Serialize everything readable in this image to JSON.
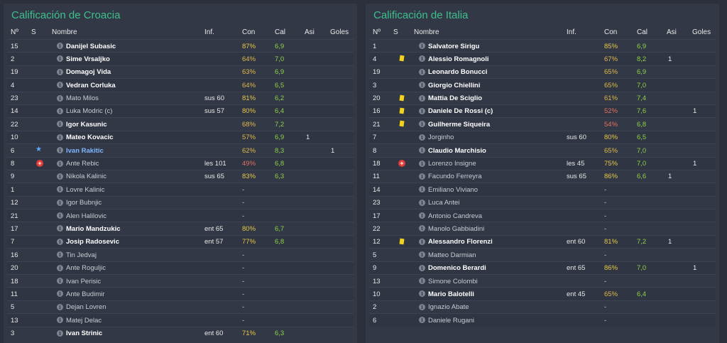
{
  "columns": {
    "no": "Nº",
    "s": "S",
    "nombre": "Nombre",
    "inf": "Inf.",
    "con": "Con",
    "cal": "Cal",
    "asi": "Asi",
    "goles": "Goles"
  },
  "left": {
    "title": "Calificación de Croacia",
    "rows": [
      {
        "no": "15",
        "name": "Danijel Subasic",
        "style": "bold",
        "inf": "",
        "con": "87%",
        "con_tone": "hi",
        "cal": "6,9",
        "asi": "",
        "goles": "",
        "icon": ""
      },
      {
        "no": "2",
        "name": "Sime Vrsaljko",
        "style": "bold",
        "inf": "",
        "con": "64%",
        "con_tone": "mid",
        "cal": "7,0",
        "asi": "",
        "goles": "",
        "icon": ""
      },
      {
        "no": "19",
        "name": "Domagoj Vida",
        "style": "bold",
        "inf": "",
        "con": "63%",
        "con_tone": "mid",
        "cal": "6,9",
        "asi": "",
        "goles": "",
        "icon": ""
      },
      {
        "no": "4",
        "name": "Vedran Corluka",
        "style": "bold",
        "inf": "",
        "con": "64%",
        "con_tone": "mid",
        "cal": "6,5",
        "asi": "",
        "goles": "",
        "icon": ""
      },
      {
        "no": "23",
        "name": "Mato Milos",
        "style": "dim",
        "inf": "sus 60",
        "con": "81%",
        "con_tone": "hi",
        "cal": "6,2",
        "asi": "",
        "goles": "",
        "icon": ""
      },
      {
        "no": "14",
        "name": "Luka Modric (c)",
        "style": "dim",
        "inf": "sus 57",
        "con": "80%",
        "con_tone": "hi",
        "cal": "6,4",
        "asi": "",
        "goles": "",
        "icon": ""
      },
      {
        "no": "22",
        "name": "Igor Kasunic",
        "style": "bold",
        "inf": "",
        "con": "68%",
        "con_tone": "mid",
        "cal": "7,2",
        "asi": "",
        "goles": "",
        "icon": ""
      },
      {
        "no": "10",
        "name": "Mateo Kovacic",
        "style": "bold",
        "inf": "",
        "con": "57%",
        "con_tone": "mid",
        "cal": "6,9",
        "asi": "1",
        "goles": "",
        "icon": ""
      },
      {
        "no": "6",
        "name": "Ivan Rakitic",
        "style": "star",
        "inf": "",
        "con": "62%",
        "con_tone": "mid",
        "cal": "8,3",
        "asi": "",
        "goles": "1",
        "icon": "star"
      },
      {
        "no": "8",
        "name": "Ante Rebic",
        "style": "dim",
        "inf": "les 101",
        "con": "49%",
        "con_tone": "lo",
        "cal": "6,8",
        "asi": "",
        "goles": "",
        "icon": "injury"
      },
      {
        "no": "9",
        "name": "Nikola Kalinic",
        "style": "dim",
        "inf": "sus 65",
        "con": "83%",
        "con_tone": "hi",
        "cal": "6,3",
        "asi": "",
        "goles": "",
        "icon": ""
      },
      {
        "no": "1",
        "name": "Lovre Kalinic",
        "style": "dim",
        "inf": "",
        "con": "-",
        "con_tone": "",
        "cal": "",
        "asi": "",
        "goles": "",
        "icon": ""
      },
      {
        "no": "12",
        "name": "Igor Bubnjic",
        "style": "dim",
        "inf": "",
        "con": "-",
        "con_tone": "",
        "cal": "",
        "asi": "",
        "goles": "",
        "icon": ""
      },
      {
        "no": "21",
        "name": "Alen Halilovic",
        "style": "dim",
        "inf": "",
        "con": "-",
        "con_tone": "",
        "cal": "",
        "asi": "",
        "goles": "",
        "icon": ""
      },
      {
        "no": "17",
        "name": "Mario Mandzukic",
        "style": "bold",
        "inf": "ent 65",
        "con": "80%",
        "con_tone": "hi",
        "cal": "6,7",
        "asi": "",
        "goles": "",
        "icon": ""
      },
      {
        "no": "7",
        "name": "Josip Radosevic",
        "style": "bold",
        "inf": "ent 57",
        "con": "77%",
        "con_tone": "hi",
        "cal": "6,8",
        "asi": "",
        "goles": "",
        "icon": ""
      },
      {
        "no": "16",
        "name": "Tin Jedvaj",
        "style": "dim",
        "inf": "",
        "con": "-",
        "con_tone": "",
        "cal": "",
        "asi": "",
        "goles": "",
        "icon": ""
      },
      {
        "no": "20",
        "name": "Ante Roguljic",
        "style": "dim",
        "inf": "",
        "con": "-",
        "con_tone": "",
        "cal": "",
        "asi": "",
        "goles": "",
        "icon": ""
      },
      {
        "no": "18",
        "name": "Ivan Perisic",
        "style": "dim",
        "inf": "",
        "con": "-",
        "con_tone": "",
        "cal": "",
        "asi": "",
        "goles": "",
        "icon": ""
      },
      {
        "no": "11",
        "name": "Ante Budimir",
        "style": "dim",
        "inf": "",
        "con": "-",
        "con_tone": "",
        "cal": "",
        "asi": "",
        "goles": "",
        "icon": ""
      },
      {
        "no": "5",
        "name": "Dejan Lovren",
        "style": "dim",
        "inf": "",
        "con": "-",
        "con_tone": "",
        "cal": "",
        "asi": "",
        "goles": "",
        "icon": ""
      },
      {
        "no": "13",
        "name": "Matej Delac",
        "style": "dim",
        "inf": "",
        "con": "-",
        "con_tone": "",
        "cal": "",
        "asi": "",
        "goles": "",
        "icon": ""
      },
      {
        "no": "3",
        "name": "Ivan Strinic",
        "style": "bold",
        "inf": "ent 60",
        "con": "71%",
        "con_tone": "hi",
        "cal": "6,3",
        "asi": "",
        "goles": "",
        "icon": ""
      }
    ]
  },
  "right": {
    "title": "Calificación de Italia",
    "rows": [
      {
        "no": "1",
        "name": "Salvatore Sirigu",
        "style": "bold",
        "inf": "",
        "con": "85%",
        "con_tone": "hi",
        "cal": "6,9",
        "asi": "",
        "goles": "",
        "icon": ""
      },
      {
        "no": "4",
        "name": "Alessio Romagnoli",
        "style": "bold",
        "inf": "",
        "con": "67%",
        "con_tone": "mid",
        "cal": "8,2",
        "asi": "1",
        "goles": "",
        "icon": "card"
      },
      {
        "no": "19",
        "name": "Leonardo Bonucci",
        "style": "bold",
        "inf": "",
        "con": "65%",
        "con_tone": "mid",
        "cal": "6,9",
        "asi": "",
        "goles": "",
        "icon": ""
      },
      {
        "no": "3",
        "name": "Giorgio Chiellini",
        "style": "bold",
        "inf": "",
        "con": "65%",
        "con_tone": "mid",
        "cal": "7,0",
        "asi": "",
        "goles": "",
        "icon": ""
      },
      {
        "no": "20",
        "name": "Mattia De Sciglio",
        "style": "bold",
        "inf": "",
        "con": "61%",
        "con_tone": "mid",
        "cal": "7,4",
        "asi": "",
        "goles": "",
        "icon": "card"
      },
      {
        "no": "16",
        "name": "Daniele De Rossi (c)",
        "style": "bold",
        "inf": "",
        "con": "52%",
        "con_tone": "lo",
        "cal": "7,6",
        "asi": "",
        "goles": "1",
        "icon": "card"
      },
      {
        "no": "21",
        "name": "Guilherme Siqueira",
        "style": "bold",
        "inf": "",
        "con": "54%",
        "con_tone": "lo",
        "cal": "6,8",
        "asi": "",
        "goles": "",
        "icon": "card"
      },
      {
        "no": "7",
        "name": "Jorginho",
        "style": "dim",
        "inf": "sus 60",
        "con": "80%",
        "con_tone": "hi",
        "cal": "6,5",
        "asi": "",
        "goles": "",
        "icon": ""
      },
      {
        "no": "8",
        "name": "Claudio Marchisio",
        "style": "bold",
        "inf": "",
        "con": "65%",
        "con_tone": "mid",
        "cal": "7,0",
        "asi": "",
        "goles": "",
        "icon": ""
      },
      {
        "no": "18",
        "name": "Lorenzo Insigne",
        "style": "dim",
        "inf": "les 45",
        "con": "75%",
        "con_tone": "hi",
        "cal": "7,0",
        "asi": "",
        "goles": "1",
        "icon": "injury"
      },
      {
        "no": "11",
        "name": "Facundo Ferreyra",
        "style": "dim",
        "inf": "sus 65",
        "con": "86%",
        "con_tone": "hi",
        "cal": "6,6",
        "asi": "1",
        "goles": "",
        "icon": ""
      },
      {
        "no": "14",
        "name": "Emiliano Viviano",
        "style": "dim",
        "inf": "",
        "con": "-",
        "con_tone": "",
        "cal": "",
        "asi": "",
        "goles": "",
        "icon": ""
      },
      {
        "no": "23",
        "name": "Luca Antei",
        "style": "dim",
        "inf": "",
        "con": "-",
        "con_tone": "",
        "cal": "",
        "asi": "",
        "goles": "",
        "icon": ""
      },
      {
        "no": "17",
        "name": "Antonio Candreva",
        "style": "dim",
        "inf": "",
        "con": "-",
        "con_tone": "",
        "cal": "",
        "asi": "",
        "goles": "",
        "icon": ""
      },
      {
        "no": "22",
        "name": "Manolo Gabbiadini",
        "style": "dim",
        "inf": "",
        "con": "-",
        "con_tone": "",
        "cal": "",
        "asi": "",
        "goles": "",
        "icon": ""
      },
      {
        "no": "12",
        "name": "Alessandro Florenzi",
        "style": "bold",
        "inf": "ent 60",
        "con": "81%",
        "con_tone": "hi",
        "cal": "7,2",
        "asi": "1",
        "goles": "",
        "icon": "card"
      },
      {
        "no": "5",
        "name": "Matteo Darmian",
        "style": "dim",
        "inf": "",
        "con": "-",
        "con_tone": "",
        "cal": "",
        "asi": "",
        "goles": "",
        "icon": ""
      },
      {
        "no": "9",
        "name": "Domenico Berardi",
        "style": "bold",
        "inf": "ent 65",
        "con": "86%",
        "con_tone": "hi",
        "cal": "7,0",
        "asi": "",
        "goles": "1",
        "icon": ""
      },
      {
        "no": "13",
        "name": "Simone Colombi",
        "style": "dim",
        "inf": "",
        "con": "-",
        "con_tone": "",
        "cal": "",
        "asi": "",
        "goles": "",
        "icon": ""
      },
      {
        "no": "10",
        "name": "Mario Balotelli",
        "style": "bold",
        "inf": "ent 45",
        "con": "65%",
        "con_tone": "mid",
        "cal": "6,4",
        "asi": "",
        "goles": "",
        "icon": ""
      },
      {
        "no": "2",
        "name": "Ignazio Abate",
        "style": "dim",
        "inf": "",
        "con": "-",
        "con_tone": "",
        "cal": "",
        "asi": "",
        "goles": "",
        "icon": ""
      },
      {
        "no": "6",
        "name": "Daniele Rugani",
        "style": "dim",
        "inf": "",
        "con": "-",
        "con_tone": "",
        "cal": "",
        "asi": "",
        "goles": "",
        "icon": ""
      }
    ]
  }
}
